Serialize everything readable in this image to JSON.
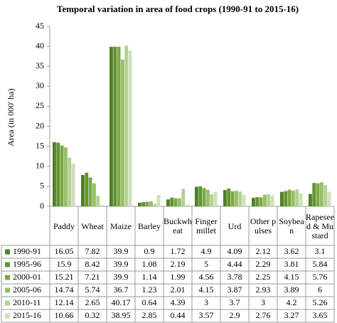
{
  "chart_data": {
    "type": "bar",
    "title": "Temporal variation in area of food crops (1990-91 to 2015-16)",
    "y_label": "Area (in 000' ha)",
    "categories": [
      "Paddy",
      "Wheat",
      "Maize",
      "Barley",
      "Buckwheat",
      "Finger millet",
      "Urd",
      "Other pulses",
      "Soybean",
      "Rapeseed & Mustard"
    ],
    "series": [
      {
        "name": "1990-91",
        "color": "#4f7f26",
        "values": [
          16.05,
          7.82,
          39.9,
          0.9,
          1.72,
          4.9,
          4.09,
          2.12,
          3.62,
          3.1
        ]
      },
      {
        "name": "1995-96",
        "color": "#63932f",
        "values": [
          15.9,
          8.42,
          39.9,
          1.08,
          2.19,
          5,
          4.44,
          2.29,
          3.81,
          5.84
        ]
      },
      {
        "name": "2000-01",
        "color": "#7aa946",
        "values": [
          15.21,
          7.21,
          39.9,
          1.14,
          1.99,
          4.56,
          3.78,
          2.25,
          4.15,
          5.76
        ]
      },
      {
        "name": "2005-06",
        "color": "#97bf6a",
        "values": [
          14.74,
          5.74,
          36.7,
          1.23,
          2.01,
          4.15,
          3.87,
          2.93,
          3.89,
          6
        ]
      },
      {
        "name": "2010-11",
        "color": "#b4d193",
        "values": [
          12.14,
          2.65,
          40.17,
          0.64,
          4.39,
          3,
          3.7,
          3,
          4.2,
          5.26
        ]
      },
      {
        "name": "2015-16",
        "color": "#cfe0bb",
        "values": [
          10.66,
          0.32,
          38.95,
          2.85,
          0.44,
          3.57,
          2.9,
          2.76,
          3.27,
          3.65
        ]
      }
    ],
    "ylim": [
      0,
      45
    ],
    "yticks": [
      0,
      5,
      10,
      15,
      20,
      25,
      30,
      35,
      40,
      45
    ],
    "grid": false
  }
}
